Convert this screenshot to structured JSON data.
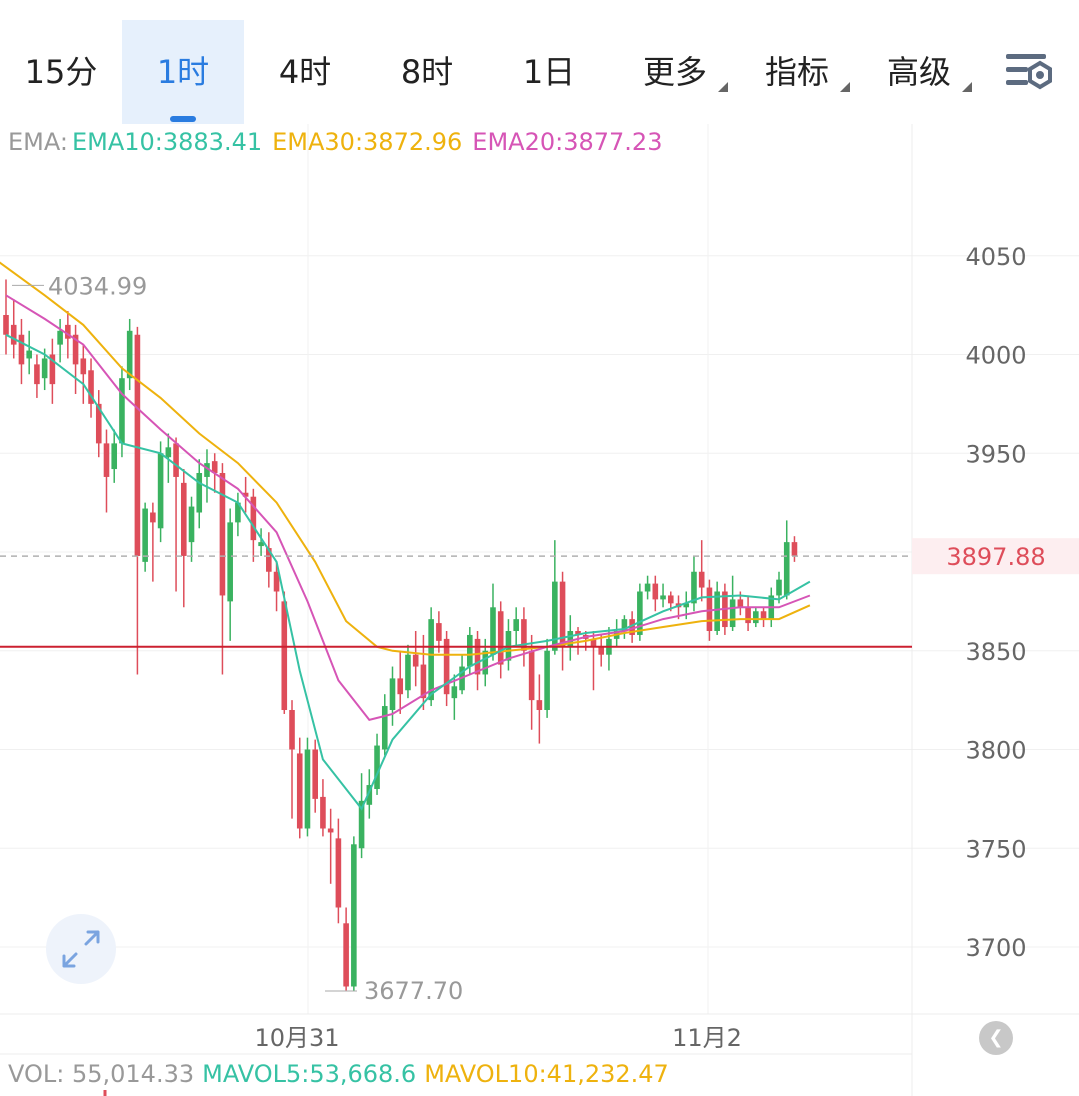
{
  "tabs": [
    {
      "label": "15分"
    },
    {
      "label": "1时",
      "active": true
    },
    {
      "label": "4时"
    },
    {
      "label": "8时"
    },
    {
      "label": "1日"
    },
    {
      "label": "更多",
      "dropdown": true
    },
    {
      "label": "指标",
      "dropdown": true
    },
    {
      "label": "高级",
      "dropdown": true
    }
  ],
  "settings_icon": "settings-icon",
  "ema_legend": {
    "prefix": "EMA:",
    "ema10": "EMA10:3883.41",
    "ema30": "EMA30:3872.96",
    "ema20": "EMA20:3877.23"
  },
  "price": {
    "current_label": "3897.88",
    "high_label": "4034.99",
    "low_label": "3677.70"
  },
  "vol_legend": {
    "vol": "VOL: 55,014.33",
    "mavol5": "MAVOL5:53,668.6",
    "mavol10": "MAVOL10:41,232.47"
  },
  "colors": {
    "up": "#3ab260",
    "down": "#de4d5a",
    "ema10": "#36c2a4",
    "ema30": "#eeb20e",
    "ema20": "#d655b6",
    "active_tab": "#2a7ce0",
    "ref_line": "#cc2030"
  },
  "chart_data": {
    "type": "candlestick",
    "y_ticks": [
      3700,
      3750,
      3800,
      3850,
      3900,
      3950,
      4000,
      4050
    ],
    "y_tick_labels": [
      "3700",
      "3750",
      "3800",
      "3850",
      "3950",
      "4000",
      "4050"
    ],
    "x_labels": [
      "10月31",
      "11月2"
    ],
    "current_price": 3897.88,
    "reference_price": 3852,
    "high": 4034.99,
    "low": 3677.7,
    "candles": [
      [
        4020,
        4010,
        4038,
        4000
      ],
      [
        4015,
        4005,
        4028,
        3998
      ],
      [
        4010,
        3995,
        4018,
        3985
      ],
      [
        3998,
        4002,
        4012,
        3990
      ],
      [
        3995,
        3985,
        4000,
        3978
      ],
      [
        3988,
        3998,
        4003,
        3982
      ],
      [
        4000,
        3985,
        4008,
        3975
      ],
      [
        4005,
        4012,
        4018,
        3996
      ],
      [
        4015,
        4008,
        4022,
        3998
      ],
      [
        4010,
        3995,
        4015,
        3980
      ],
      [
        3998,
        3990,
        4005,
        3975
      ],
      [
        3992,
        3975,
        3998,
        3968
      ],
      [
        3975,
        3955,
        3982,
        3948
      ],
      [
        3955,
        3938,
        3962,
        3920
      ],
      [
        3942,
        3955,
        3962,
        3935
      ],
      [
        3955,
        3988,
        3994,
        3948
      ],
      [
        3988,
        4012,
        4018,
        3982
      ],
      [
        4010,
        3898,
        4014,
        3838
      ],
      [
        3895,
        3922,
        3925,
        3890
      ],
      [
        3920,
        3915,
        3925,
        3885
      ],
      [
        3912,
        3950,
        3956,
        3905
      ],
      [
        3948,
        3953,
        3960,
        3935
      ],
      [
        3955,
        3938,
        3958,
        3880
      ],
      [
        3935,
        3898,
        3942,
        3872
      ],
      [
        3905,
        3923,
        3928,
        3895
      ],
      [
        3920,
        3940,
        3947,
        3912
      ],
      [
        3938,
        3945,
        3952,
        3925
      ],
      [
        3946,
        3940,
        3950,
        3930
      ],
      [
        3940,
        3878,
        3945,
        3838
      ],
      [
        3875,
        3915,
        3922,
        3855
      ],
      [
        3915,
        3925,
        3930,
        3908
      ],
      [
        3930,
        3928,
        3938,
        3920
      ],
      [
        3928,
        3906,
        3932,
        3895
      ],
      [
        3903,
        3905,
        3912,
        3898
      ],
      [
        3902,
        3890,
        3910,
        3882
      ],
      [
        3890,
        3880,
        3895,
        3870
      ],
      [
        3875,
        3820,
        3880,
        3818
      ],
      [
        3820,
        3800,
        3825,
        3765
      ],
      [
        3798,
        3760,
        3806,
        3755
      ],
      [
        3760,
        3800,
        3806,
        3756
      ],
      [
        3800,
        3775,
        3805,
        3768
      ],
      [
        3776,
        3760,
        3785,
        3756
      ],
      [
        3760,
        3758,
        3770,
        3732
      ],
      [
        3755,
        3720,
        3765,
        3712
      ],
      [
        3712,
        3680,
        3720,
        3678
      ],
      [
        3680,
        3752,
        3756,
        3678
      ],
      [
        3750,
        3774,
        3788,
        3745
      ],
      [
        3772,
        3782,
        3790,
        3765
      ],
      [
        3780,
        3802,
        3808,
        3777
      ],
      [
        3800,
        3822,
        3828,
        3797
      ],
      [
        3820,
        3836,
        3842,
        3812
      ],
      [
        3836,
        3828,
        3850,
        3818
      ],
      [
        3830,
        3848,
        3853,
        3826
      ],
      [
        3848,
        3842,
        3860,
        3832
      ],
      [
        3843,
        3826,
        3858,
        3820
      ],
      [
        3825,
        3866,
        3872,
        3822
      ],
      [
        3864,
        3855,
        3870,
        3849
      ],
      [
        3856,
        3828,
        3860,
        3822
      ],
      [
        3826,
        3832,
        3838,
        3815
      ],
      [
        3830,
        3842,
        3848,
        3828
      ],
      [
        3842,
        3858,
        3862,
        3838
      ],
      [
        3856,
        3838,
        3860,
        3830
      ],
      [
        3838,
        3850,
        3856,
        3832
      ],
      [
        3848,
        3872,
        3884,
        3845
      ],
      [
        3870,
        3843,
        3875,
        3836
      ],
      [
        3845,
        3860,
        3866,
        3840
      ],
      [
        3860,
        3866,
        3872,
        3852
      ],
      [
        3866,
        3850,
        3872,
        3842
      ],
      [
        3850,
        3825,
        3858,
        3810
      ],
      [
        3825,
        3820,
        3838,
        3803
      ],
      [
        3820,
        3850,
        3856,
        3816
      ],
      [
        3850,
        3885,
        3906,
        3848
      ],
      [
        3885,
        3852,
        3890,
        3840
      ],
      [
        3852,
        3860,
        3868,
        3845
      ],
      [
        3860,
        3858,
        3862,
        3848
      ],
      [
        3858,
        3856,
        3860,
        3850
      ],
      [
        3856,
        3852,
        3860,
        3830
      ],
      [
        3852,
        3848,
        3858,
        3842
      ],
      [
        3848,
        3856,
        3862,
        3840
      ],
      [
        3856,
        3860,
        3866,
        3852
      ],
      [
        3860,
        3866,
        3868,
        3856
      ],
      [
        3866,
        3858,
        3870,
        3854
      ],
      [
        3858,
        3880,
        3884,
        3855
      ],
      [
        3880,
        3884,
        3888,
        3876
      ],
      [
        3884,
        3876,
        3888,
        3870
      ],
      [
        3876,
        3878,
        3884,
        3872
      ],
      [
        3878,
        3874,
        3880,
        3870
      ],
      [
        3874,
        3872,
        3878,
        3866
      ],
      [
        3872,
        3874,
        3880,
        3866
      ],
      [
        3874,
        3890,
        3898,
        3870
      ],
      [
        3890,
        3882,
        3906,
        3875
      ],
      [
        3882,
        3860,
        3886,
        3855
      ],
      [
        3860,
        3880,
        3885,
        3858
      ],
      [
        3880,
        3862,
        3884,
        3858
      ],
      [
        3862,
        3876,
        3888,
        3860
      ],
      [
        3876,
        3872,
        3880,
        3868
      ],
      [
        3872,
        3864,
        3878,
        3860
      ],
      [
        3864,
        3870,
        3872,
        3862
      ],
      [
        3870,
        3866,
        3872,
        3862
      ],
      [
        3866,
        3878,
        3882,
        3862
      ],
      [
        3878,
        3886,
        3890,
        3874
      ],
      [
        3878,
        3905,
        3916,
        3876
      ],
      [
        3905,
        3898,
        3908,
        3895
      ]
    ],
    "ema10": [
      [
        0,
        4010
      ],
      [
        5,
        4000
      ],
      [
        10,
        3985
      ],
      [
        15,
        3955
      ],
      [
        20,
        3950
      ],
      [
        25,
        3935
      ],
      [
        30,
        3925
      ],
      [
        35,
        3895
      ],
      [
        38,
        3840
      ],
      [
        41,
        3795
      ],
      [
        44,
        3780
      ],
      [
        46,
        3770
      ],
      [
        50,
        3805
      ],
      [
        55,
        3828
      ],
      [
        60,
        3842
      ],
      [
        65,
        3852
      ],
      [
        70,
        3855
      ],
      [
        75,
        3859
      ],
      [
        80,
        3861
      ],
      [
        85,
        3870
      ],
      [
        90,
        3877
      ],
      [
        95,
        3878
      ],
      [
        100,
        3876
      ],
      [
        104,
        3885
      ]
    ],
    "ema20": [
      [
        0,
        4030
      ],
      [
        5,
        4018
      ],
      [
        10,
        4005
      ],
      [
        15,
        3980
      ],
      [
        20,
        3962
      ],
      [
        25,
        3945
      ],
      [
        30,
        3932
      ],
      [
        35,
        3910
      ],
      [
        39,
        3875
      ],
      [
        43,
        3835
      ],
      [
        47,
        3815
      ],
      [
        50,
        3818
      ],
      [
        55,
        3830
      ],
      [
        60,
        3838
      ],
      [
        65,
        3846
      ],
      [
        70,
        3852
      ],
      [
        75,
        3857
      ],
      [
        80,
        3860
      ],
      [
        85,
        3866
      ],
      [
        90,
        3870
      ],
      [
        95,
        3872
      ],
      [
        100,
        3872
      ],
      [
        104,
        3878
      ]
    ],
    "ema30": [
      [
        -2,
        4050
      ],
      [
        5,
        4030
      ],
      [
        10,
        4015
      ],
      [
        15,
        3993
      ],
      [
        20,
        3978
      ],
      [
        25,
        3960
      ],
      [
        30,
        3945
      ],
      [
        35,
        3925
      ],
      [
        40,
        3895
      ],
      [
        44,
        3865
      ],
      [
        48,
        3852
      ],
      [
        50,
        3850
      ],
      [
        55,
        3848
      ],
      [
        60,
        3848
      ],
      [
        65,
        3850
      ],
      [
        70,
        3852
      ],
      [
        75,
        3855
      ],
      [
        80,
        3859
      ],
      [
        85,
        3862
      ],
      [
        90,
        3865
      ],
      [
        95,
        3866
      ],
      [
        100,
        3866
      ],
      [
        104,
        3873
      ]
    ]
  }
}
